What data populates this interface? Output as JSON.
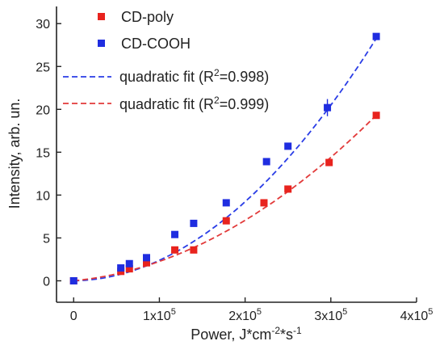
{
  "chart_data": {
    "type": "scatter",
    "xlabel": "Power, J*cm",
    "xlabel_sup1": "-2",
    "xlabel_mid": "*s",
    "xlabel_sup2": "-1",
    "ylabel": "Intensity, arb. un.",
    "xlim": [
      -20000,
      400000
    ],
    "ylim": [
      -2.5,
      32
    ],
    "x_ticks": [
      {
        "value": 0,
        "base": "0",
        "exp": ""
      },
      {
        "value": 100000,
        "base": "1x10",
        "exp": "5"
      },
      {
        "value": 200000,
        "base": "2x10",
        "exp": "5"
      },
      {
        "value": 300000,
        "base": "3x10",
        "exp": "5"
      },
      {
        "value": 400000,
        "base": "4x10",
        "exp": "5"
      }
    ],
    "y_ticks": [
      {
        "value": 0,
        "label": "0"
      },
      {
        "value": 5,
        "label": "5"
      },
      {
        "value": 10,
        "label": "10"
      },
      {
        "value": 15,
        "label": "15"
      },
      {
        "value": 20,
        "label": "20"
      },
      {
        "value": 25,
        "label": "25"
      },
      {
        "value": 30,
        "label": "30"
      }
    ],
    "legend_position": "top-left",
    "series": [
      {
        "name": "CD-poly",
        "color": "#e8231e",
        "marker": "square",
        "x": [
          0,
          55000,
          65000,
          85000,
          118000,
          140000,
          178000,
          222000,
          250000,
          298000,
          353000
        ],
        "y": [
          0,
          1.1,
          1.4,
          2.1,
          3.6,
          3.6,
          7.0,
          9.1,
          10.7,
          13.8,
          19.3
        ]
      },
      {
        "name": "CD-COOH",
        "color": "#1f2de0",
        "marker": "square",
        "x": [
          0,
          55000,
          65000,
          85000,
          118000,
          140000,
          178000,
          225000,
          250000,
          296000,
          353000
        ],
        "y": [
          0,
          1.5,
          2.0,
          2.7,
          5.4,
          6.7,
          9.1,
          13.9,
          15.7,
          20.2,
          28.5
        ],
        "error_bars": [
          {
            "x": 296000,
            "y": 20.2,
            "err": 1.0
          }
        ]
      }
    ],
    "fits": [
      {
        "name_prefix": "quadratic fit (R",
        "name_sup": "2",
        "name_suffix": "=0.998)",
        "color": "#2a3de6",
        "dashed": true,
        "coefficients": {
          "a": 2.22e-10,
          "b": 1.71e-06,
          "c": 0
        }
      },
      {
        "name_prefix": "quadratic fit (R",
        "name_sup": "2",
        "name_suffix": "=0.999)",
        "color": "#e23a3a",
        "dashed": true,
        "coefficients": {
          "a": 1.27e-10,
          "b": 9.9e-06,
          "c": 0
        }
      }
    ]
  }
}
